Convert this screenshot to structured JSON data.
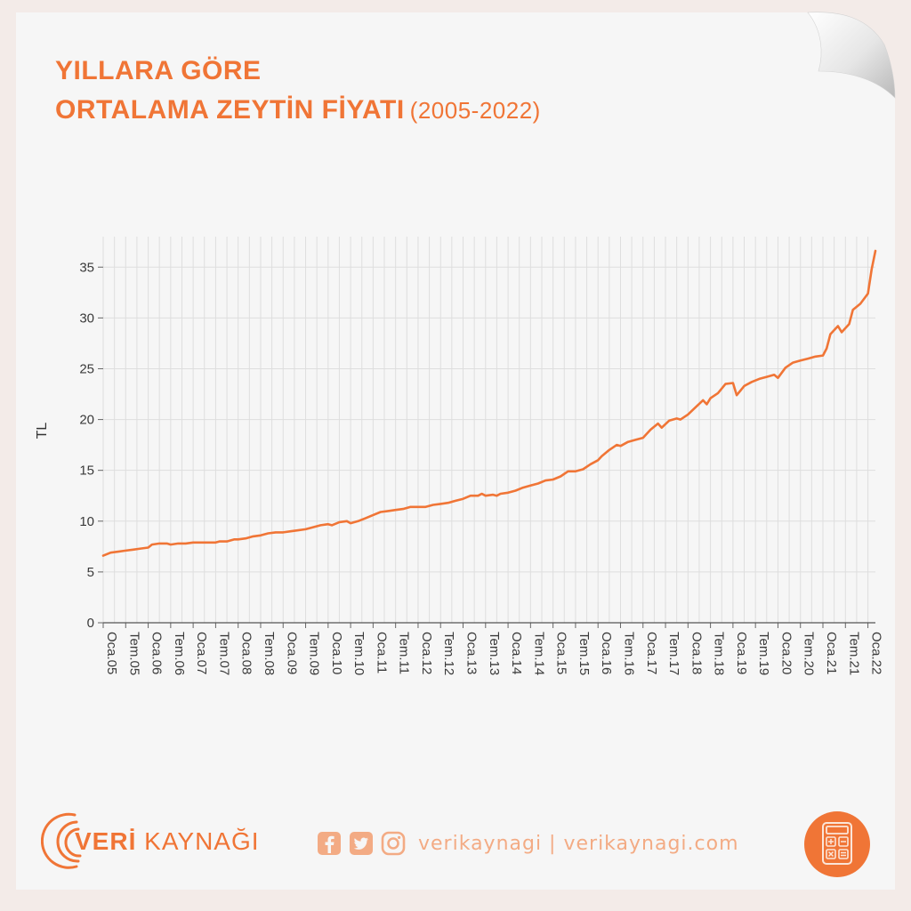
{
  "title": {
    "line1": "YILLARA GÖRE",
    "line2": "ORTALAMA ZEYTİN FİYATI",
    "years": "(2005-2022)"
  },
  "colors": {
    "accent": "#f07536",
    "social": "#f3ab84",
    "grid": "#dedede",
    "paper": "#f6f6f6",
    "background": "#f3ebe8"
  },
  "chart_data": {
    "type": "line",
    "title": "YILLARA GÖRE ORTALAMA ZEYTİN FİYATI (2005-2022)",
    "xlabel": "",
    "ylabel": "TL",
    "ylim": [
      0,
      38
    ],
    "yticks": [
      0,
      5,
      10,
      15,
      20,
      25,
      30,
      35
    ],
    "xlim": [
      "2005-01",
      "2022-02"
    ],
    "xtick_labels": [
      "Oca.05",
      "Tem.05",
      "Oca.06",
      "Tem.06",
      "Oca.07",
      "Tem.07",
      "Oca.08",
      "Tem.08",
      "Oca.09",
      "Tem.09",
      "Oca.10",
      "Tem.10",
      "Oca.11",
      "Tem.11",
      "Oca.12",
      "Tem.12",
      "Oca.13",
      "Tem.13",
      "Oca.14",
      "Tem.14",
      "Oca.15",
      "Tem.15",
      "Oca.16",
      "Tem.16",
      "Oca.17",
      "Tem.17",
      "Oca.18",
      "Tem.18",
      "Oca.19",
      "Tem.19",
      "Oca.20",
      "Tem.20",
      "Oca.21",
      "Tem.21",
      "Oca.22"
    ],
    "grid": true,
    "series": [
      {
        "color": "#f07536",
        "points": [
          [
            "2005-01",
            6.6
          ],
          [
            "2005-03",
            6.9
          ],
          [
            "2005-05",
            7.0
          ],
          [
            "2005-07",
            7.1
          ],
          [
            "2005-09",
            7.2
          ],
          [
            "2005-11",
            7.3
          ],
          [
            "2006-01",
            7.4
          ],
          [
            "2006-02",
            7.7
          ],
          [
            "2006-04",
            7.8
          ],
          [
            "2006-06",
            7.8
          ],
          [
            "2006-07",
            7.7
          ],
          [
            "2006-09",
            7.8
          ],
          [
            "2006-11",
            7.8
          ],
          [
            "2007-01",
            7.9
          ],
          [
            "2007-03",
            7.9
          ],
          [
            "2007-05",
            7.9
          ],
          [
            "2007-07",
            7.9
          ],
          [
            "2007-08",
            8.0
          ],
          [
            "2007-10",
            8.0
          ],
          [
            "2007-12",
            8.2
          ],
          [
            "2008-01",
            8.2
          ],
          [
            "2008-03",
            8.3
          ],
          [
            "2008-05",
            8.5
          ],
          [
            "2008-07",
            8.6
          ],
          [
            "2008-09",
            8.8
          ],
          [
            "2008-11",
            8.9
          ],
          [
            "2009-01",
            8.9
          ],
          [
            "2009-03",
            9.0
          ],
          [
            "2009-05",
            9.1
          ],
          [
            "2009-07",
            9.2
          ],
          [
            "2009-09",
            9.4
          ],
          [
            "2009-11",
            9.6
          ],
          [
            "2010-01",
            9.7
          ],
          [
            "2010-02",
            9.6
          ],
          [
            "2010-04",
            9.9
          ],
          [
            "2010-06",
            10.0
          ],
          [
            "2010-07",
            9.8
          ],
          [
            "2010-09",
            10.0
          ],
          [
            "2010-11",
            10.3
          ],
          [
            "2011-01",
            10.6
          ],
          [
            "2011-03",
            10.9
          ],
          [
            "2011-05",
            11.0
          ],
          [
            "2011-07",
            11.1
          ],
          [
            "2011-09",
            11.2
          ],
          [
            "2011-11",
            11.4
          ],
          [
            "2012-01",
            11.4
          ],
          [
            "2012-03",
            11.4
          ],
          [
            "2012-05",
            11.6
          ],
          [
            "2012-07",
            11.7
          ],
          [
            "2012-09",
            11.8
          ],
          [
            "2012-11",
            12.0
          ],
          [
            "2013-01",
            12.2
          ],
          [
            "2013-03",
            12.5
          ],
          [
            "2013-05",
            12.5
          ],
          [
            "2013-06",
            12.7
          ],
          [
            "2013-07",
            12.5
          ],
          [
            "2013-09",
            12.6
          ],
          [
            "2013-10",
            12.5
          ],
          [
            "2013-11",
            12.7
          ],
          [
            "2014-01",
            12.8
          ],
          [
            "2014-03",
            13.0
          ],
          [
            "2014-05",
            13.3
          ],
          [
            "2014-07",
            13.5
          ],
          [
            "2014-09",
            13.7
          ],
          [
            "2014-11",
            14.0
          ],
          [
            "2015-01",
            14.1
          ],
          [
            "2015-03",
            14.4
          ],
          [
            "2015-05",
            14.9
          ],
          [
            "2015-07",
            14.9
          ],
          [
            "2015-09",
            15.1
          ],
          [
            "2015-11",
            15.6
          ],
          [
            "2016-01",
            16.0
          ],
          [
            "2016-02",
            16.4
          ],
          [
            "2016-04",
            17.0
          ],
          [
            "2016-06",
            17.5
          ],
          [
            "2016-07",
            17.4
          ],
          [
            "2016-09",
            17.8
          ],
          [
            "2016-11",
            18.0
          ],
          [
            "2017-01",
            18.2
          ],
          [
            "2017-03",
            19.0
          ],
          [
            "2017-05",
            19.6
          ],
          [
            "2017-06",
            19.2
          ],
          [
            "2017-08",
            19.9
          ],
          [
            "2017-10",
            20.1
          ],
          [
            "2017-11",
            20.0
          ],
          [
            "2018-01",
            20.5
          ],
          [
            "2018-03",
            21.2
          ],
          [
            "2018-05",
            21.9
          ],
          [
            "2018-06",
            21.5
          ],
          [
            "2018-07",
            22.1
          ],
          [
            "2018-09",
            22.6
          ],
          [
            "2018-11",
            23.5
          ],
          [
            "2019-01",
            23.6
          ],
          [
            "2019-02",
            22.4
          ],
          [
            "2019-04",
            23.3
          ],
          [
            "2019-06",
            23.7
          ],
          [
            "2019-08",
            24.0
          ],
          [
            "2019-10",
            24.2
          ],
          [
            "2019-12",
            24.4
          ],
          [
            "2020-01",
            24.1
          ],
          [
            "2020-03",
            25.1
          ],
          [
            "2020-05",
            25.6
          ],
          [
            "2020-07",
            25.8
          ],
          [
            "2020-09",
            26.0
          ],
          [
            "2020-11",
            26.2
          ],
          [
            "2021-01",
            26.3
          ],
          [
            "2021-02",
            27.0
          ],
          [
            "2021-03",
            28.4
          ],
          [
            "2021-05",
            29.2
          ],
          [
            "2021-06",
            28.6
          ],
          [
            "2021-08",
            29.4
          ],
          [
            "2021-09",
            30.8
          ],
          [
            "2021-11",
            31.4
          ],
          [
            "2022-01",
            32.4
          ],
          [
            "2022-02",
            34.8
          ],
          [
            "2022-03",
            36.6
          ]
        ]
      }
    ]
  },
  "footer": {
    "brand_strong": "VERİ",
    "brand_light": "KAYNAĞI",
    "social_text": "verikaynagi | verikaynagi.com",
    "icons": [
      "facebook-icon",
      "twitter-icon",
      "instagram-icon",
      "calculator-icon"
    ]
  }
}
